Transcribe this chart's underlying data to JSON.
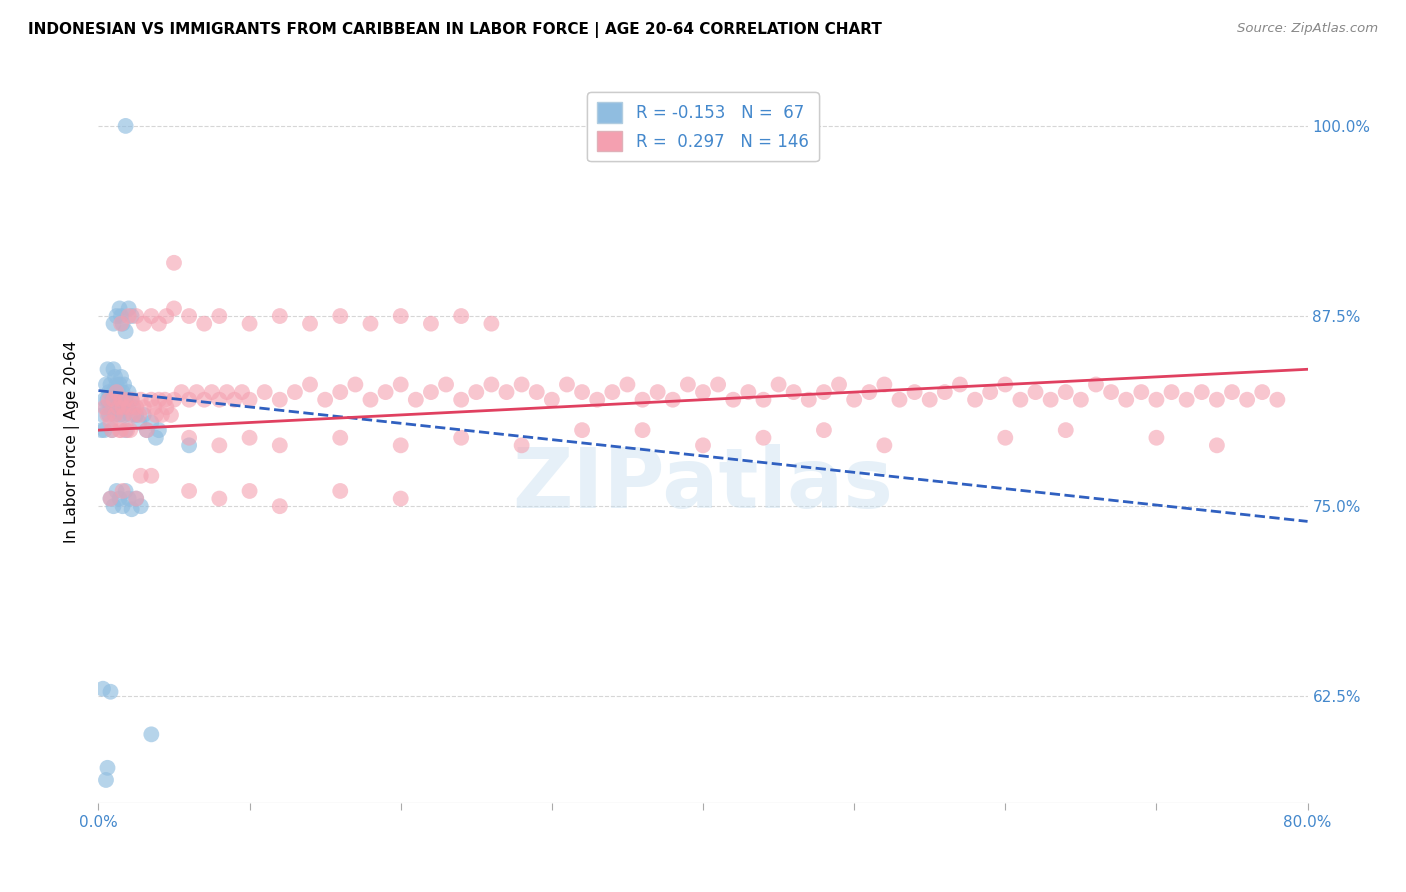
{
  "title": "INDONESIAN VS IMMIGRANTS FROM CARIBBEAN IN LABOR FORCE | AGE 20-64 CORRELATION CHART",
  "source": "Source: ZipAtlas.com",
  "ylabel": "In Labor Force | Age 20-64",
  "ytick_values": [
    0.625,
    0.75,
    0.875,
    1.0
  ],
  "xlim": [
    0.0,
    0.8
  ],
  "ylim": [
    0.555,
    1.03
  ],
  "indonesian_color": "#90bde0",
  "caribbean_color": "#f4a0b0",
  "indonesian_line_color": "#3060c0",
  "caribbean_line_color": "#e04060",
  "watermark": "ZIPatlas",
  "indonesian_R": -0.153,
  "indonesian_N": 67,
  "caribbean_R": 0.297,
  "caribbean_N": 146,
  "indonesian_line": [
    0.0,
    0.826,
    0.8,
    0.74
  ],
  "caribbean_line": [
    0.0,
    0.8,
    0.8,
    0.84
  ],
  "indonesian_points": [
    [
      0.002,
      0.8
    ],
    [
      0.003,
      0.81
    ],
    [
      0.004,
      0.82
    ],
    [
      0.004,
      0.8
    ],
    [
      0.005,
      0.83
    ],
    [
      0.005,
      0.815
    ],
    [
      0.006,
      0.84
    ],
    [
      0.006,
      0.82
    ],
    [
      0.007,
      0.81
    ],
    [
      0.007,
      0.825
    ],
    [
      0.008,
      0.83
    ],
    [
      0.008,
      0.815
    ],
    [
      0.009,
      0.82
    ],
    [
      0.009,
      0.8
    ],
    [
      0.01,
      0.84
    ],
    [
      0.01,
      0.825
    ],
    [
      0.011,
      0.835
    ],
    [
      0.011,
      0.81
    ],
    [
      0.012,
      0.82
    ],
    [
      0.012,
      0.83
    ],
    [
      0.013,
      0.825
    ],
    [
      0.013,
      0.815
    ],
    [
      0.014,
      0.81
    ],
    [
      0.014,
      0.83
    ],
    [
      0.015,
      0.82
    ],
    [
      0.015,
      0.835
    ],
    [
      0.016,
      0.815
    ],
    [
      0.016,
      0.825
    ],
    [
      0.017,
      0.81
    ],
    [
      0.017,
      0.83
    ],
    [
      0.018,
      0.82
    ],
    [
      0.018,
      0.8
    ],
    [
      0.019,
      0.815
    ],
    [
      0.02,
      0.825
    ],
    [
      0.021,
      0.81
    ],
    [
      0.022,
      0.82
    ],
    [
      0.023,
      0.815
    ],
    [
      0.025,
      0.81
    ],
    [
      0.027,
      0.805
    ],
    [
      0.03,
      0.81
    ],
    [
      0.032,
      0.8
    ],
    [
      0.035,
      0.805
    ],
    [
      0.038,
      0.795
    ],
    [
      0.04,
      0.8
    ],
    [
      0.01,
      0.87
    ],
    [
      0.012,
      0.875
    ],
    [
      0.014,
      0.88
    ],
    [
      0.015,
      0.875
    ],
    [
      0.016,
      0.87
    ],
    [
      0.018,
      0.865
    ],
    [
      0.02,
      0.88
    ],
    [
      0.022,
      0.875
    ],
    [
      0.008,
      0.755
    ],
    [
      0.01,
      0.75
    ],
    [
      0.012,
      0.76
    ],
    [
      0.014,
      0.755
    ],
    [
      0.016,
      0.75
    ],
    [
      0.018,
      0.76
    ],
    [
      0.02,
      0.755
    ],
    [
      0.022,
      0.748
    ],
    [
      0.008,
      0.628
    ],
    [
      0.006,
      0.578
    ],
    [
      0.003,
      0.63
    ],
    [
      0.035,
      0.6
    ],
    [
      0.018,
      1.0
    ],
    [
      0.005,
      0.57
    ],
    [
      0.025,
      0.755
    ],
    [
      0.028,
      0.75
    ],
    [
      0.06,
      0.79
    ]
  ],
  "caribbean_points": [
    [
      0.004,
      0.815
    ],
    [
      0.006,
      0.81
    ],
    [
      0.007,
      0.82
    ],
    [
      0.008,
      0.805
    ],
    [
      0.009,
      0.8
    ],
    [
      0.01,
      0.82
    ],
    [
      0.011,
      0.81
    ],
    [
      0.012,
      0.825
    ],
    [
      0.013,
      0.815
    ],
    [
      0.014,
      0.8
    ],
    [
      0.015,
      0.82
    ],
    [
      0.015,
      0.8
    ],
    [
      0.016,
      0.815
    ],
    [
      0.017,
      0.81
    ],
    [
      0.018,
      0.82
    ],
    [
      0.019,
      0.8
    ],
    [
      0.02,
      0.815
    ],
    [
      0.021,
      0.8
    ],
    [
      0.022,
      0.82
    ],
    [
      0.023,
      0.81
    ],
    [
      0.025,
      0.815
    ],
    [
      0.027,
      0.81
    ],
    [
      0.028,
      0.82
    ],
    [
      0.03,
      0.815
    ],
    [
      0.032,
      0.8
    ],
    [
      0.035,
      0.82
    ],
    [
      0.037,
      0.815
    ],
    [
      0.038,
      0.81
    ],
    [
      0.04,
      0.82
    ],
    [
      0.042,
      0.81
    ],
    [
      0.044,
      0.82
    ],
    [
      0.045,
      0.815
    ],
    [
      0.048,
      0.81
    ],
    [
      0.05,
      0.82
    ],
    [
      0.055,
      0.825
    ],
    [
      0.06,
      0.82
    ],
    [
      0.065,
      0.825
    ],
    [
      0.07,
      0.82
    ],
    [
      0.075,
      0.825
    ],
    [
      0.08,
      0.82
    ],
    [
      0.085,
      0.825
    ],
    [
      0.09,
      0.82
    ],
    [
      0.095,
      0.825
    ],
    [
      0.1,
      0.82
    ],
    [
      0.11,
      0.825
    ],
    [
      0.12,
      0.82
    ],
    [
      0.13,
      0.825
    ],
    [
      0.14,
      0.83
    ],
    [
      0.15,
      0.82
    ],
    [
      0.16,
      0.825
    ],
    [
      0.17,
      0.83
    ],
    [
      0.18,
      0.82
    ],
    [
      0.19,
      0.825
    ],
    [
      0.2,
      0.83
    ],
    [
      0.21,
      0.82
    ],
    [
      0.22,
      0.825
    ],
    [
      0.23,
      0.83
    ],
    [
      0.24,
      0.82
    ],
    [
      0.25,
      0.825
    ],
    [
      0.26,
      0.83
    ],
    [
      0.27,
      0.825
    ],
    [
      0.28,
      0.83
    ],
    [
      0.29,
      0.825
    ],
    [
      0.3,
      0.82
    ],
    [
      0.31,
      0.83
    ],
    [
      0.32,
      0.825
    ],
    [
      0.33,
      0.82
    ],
    [
      0.34,
      0.825
    ],
    [
      0.35,
      0.83
    ],
    [
      0.36,
      0.82
    ],
    [
      0.37,
      0.825
    ],
    [
      0.38,
      0.82
    ],
    [
      0.39,
      0.83
    ],
    [
      0.4,
      0.825
    ],
    [
      0.41,
      0.83
    ],
    [
      0.42,
      0.82
    ],
    [
      0.43,
      0.825
    ],
    [
      0.44,
      0.82
    ],
    [
      0.45,
      0.83
    ],
    [
      0.46,
      0.825
    ],
    [
      0.47,
      0.82
    ],
    [
      0.48,
      0.825
    ],
    [
      0.49,
      0.83
    ],
    [
      0.5,
      0.82
    ],
    [
      0.51,
      0.825
    ],
    [
      0.52,
      0.83
    ],
    [
      0.53,
      0.82
    ],
    [
      0.54,
      0.825
    ],
    [
      0.55,
      0.82
    ],
    [
      0.56,
      0.825
    ],
    [
      0.57,
      0.83
    ],
    [
      0.58,
      0.82
    ],
    [
      0.59,
      0.825
    ],
    [
      0.6,
      0.83
    ],
    [
      0.61,
      0.82
    ],
    [
      0.62,
      0.825
    ],
    [
      0.63,
      0.82
    ],
    [
      0.64,
      0.825
    ],
    [
      0.65,
      0.82
    ],
    [
      0.66,
      0.83
    ],
    [
      0.67,
      0.825
    ],
    [
      0.68,
      0.82
    ],
    [
      0.69,
      0.825
    ],
    [
      0.7,
      0.82
    ],
    [
      0.71,
      0.825
    ],
    [
      0.72,
      0.82
    ],
    [
      0.73,
      0.825
    ],
    [
      0.74,
      0.82
    ],
    [
      0.75,
      0.825
    ],
    [
      0.76,
      0.82
    ],
    [
      0.77,
      0.825
    ],
    [
      0.78,
      0.82
    ],
    [
      0.015,
      0.87
    ],
    [
      0.02,
      0.875
    ],
    [
      0.025,
      0.875
    ],
    [
      0.03,
      0.87
    ],
    [
      0.035,
      0.875
    ],
    [
      0.04,
      0.87
    ],
    [
      0.045,
      0.875
    ],
    [
      0.05,
      0.88
    ],
    [
      0.06,
      0.875
    ],
    [
      0.07,
      0.87
    ],
    [
      0.08,
      0.875
    ],
    [
      0.1,
      0.87
    ],
    [
      0.12,
      0.875
    ],
    [
      0.14,
      0.87
    ],
    [
      0.16,
      0.875
    ],
    [
      0.18,
      0.87
    ],
    [
      0.2,
      0.875
    ],
    [
      0.22,
      0.87
    ],
    [
      0.24,
      0.875
    ],
    [
      0.26,
      0.87
    ],
    [
      0.05,
      0.91
    ],
    [
      0.008,
      0.755
    ],
    [
      0.016,
      0.76
    ],
    [
      0.025,
      0.755
    ],
    [
      0.028,
      0.77
    ],
    [
      0.035,
      0.77
    ],
    [
      0.06,
      0.76
    ],
    [
      0.08,
      0.755
    ],
    [
      0.1,
      0.76
    ],
    [
      0.12,
      0.75
    ],
    [
      0.16,
      0.76
    ],
    [
      0.2,
      0.755
    ],
    [
      0.06,
      0.795
    ],
    [
      0.08,
      0.79
    ],
    [
      0.1,
      0.795
    ],
    [
      0.12,
      0.79
    ],
    [
      0.16,
      0.795
    ],
    [
      0.2,
      0.79
    ],
    [
      0.24,
      0.795
    ],
    [
      0.28,
      0.79
    ],
    [
      0.32,
      0.8
    ],
    [
      0.36,
      0.8
    ],
    [
      0.4,
      0.79
    ],
    [
      0.44,
      0.795
    ],
    [
      0.48,
      0.8
    ],
    [
      0.52,
      0.79
    ],
    [
      0.6,
      0.795
    ],
    [
      0.64,
      0.8
    ],
    [
      0.7,
      0.795
    ],
    [
      0.74,
      0.79
    ]
  ]
}
